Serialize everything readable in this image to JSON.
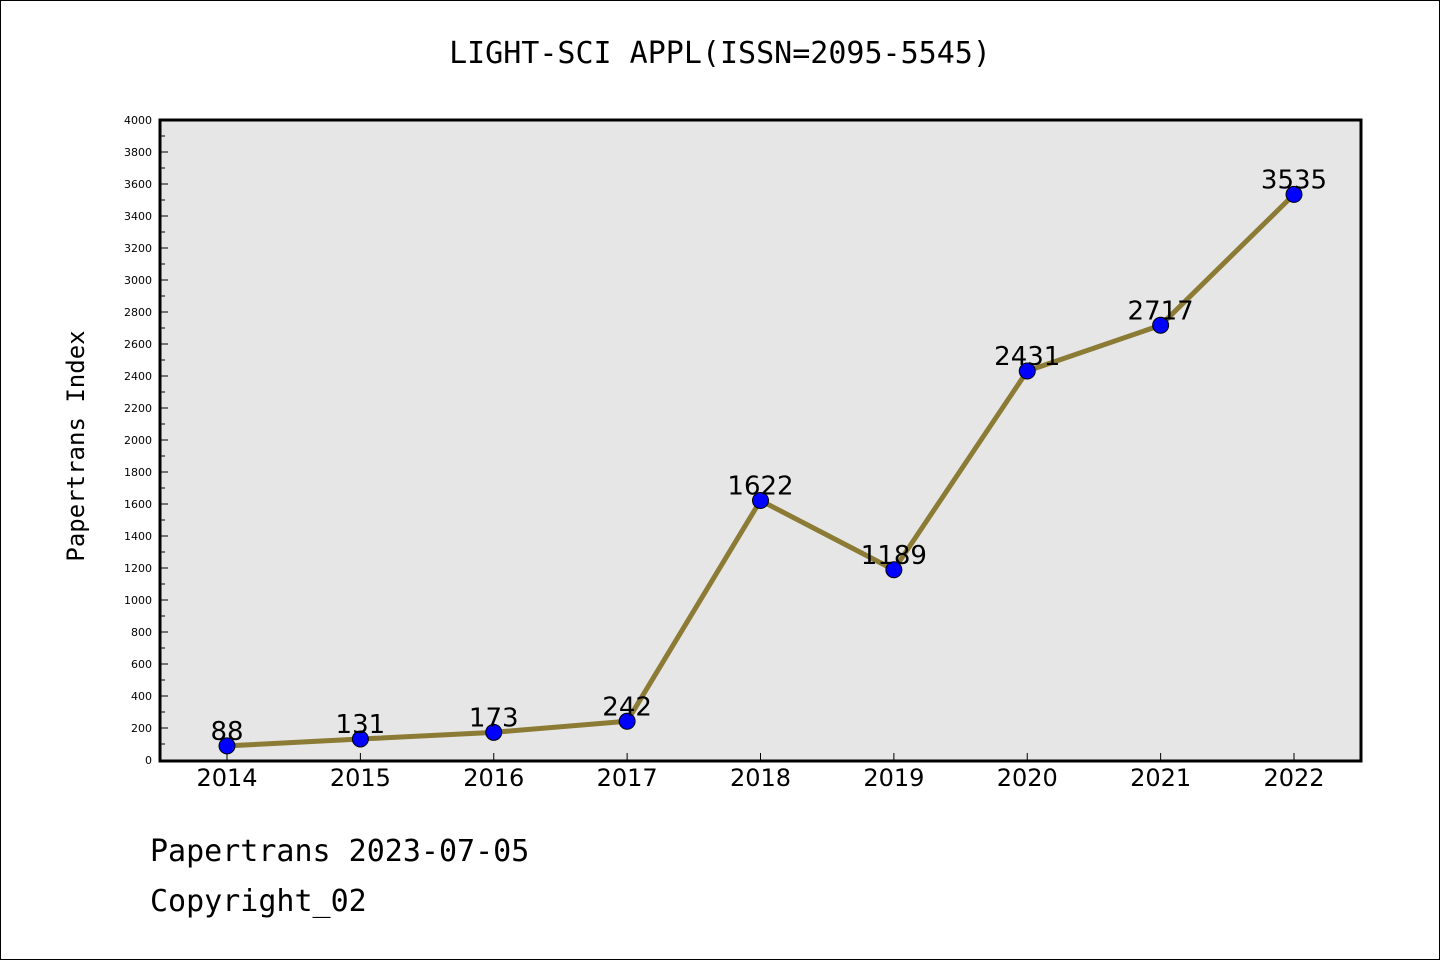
{
  "title": "LIGHT-SCI APPL(ISSN=2095-5545)",
  "footer": {
    "line1": "Papertrans 2023-07-05",
    "line2": "Copyright_02"
  },
  "colors": {
    "plot_background": "#e6e6e6",
    "line": "#8b7b35",
    "marker": "#0000ff"
  },
  "chart_data": {
    "type": "line",
    "title": "LIGHT-SCI APPL(ISSN=2095-5545)",
    "xlabel": "",
    "ylabel": "Papertrans Index",
    "categories": [
      "2014",
      "2015",
      "2016",
      "2017",
      "2018",
      "2019",
      "2020",
      "2021",
      "2022"
    ],
    "values": [
      88,
      131,
      173,
      242,
      1622,
      1189,
      2431,
      2717,
      3535
    ],
    "data_labels": [
      "88",
      "131",
      "173",
      "242",
      "1622",
      "1189",
      "2431",
      "2717",
      "3535"
    ],
    "ylim": [
      0,
      4000
    ],
    "y_ticks": [
      0,
      200,
      400,
      600,
      800,
      1000,
      1200,
      1400,
      1600,
      1800,
      2000,
      2200,
      2400,
      2600,
      2800,
      3000,
      3200,
      3400,
      3600,
      3800,
      4000
    ],
    "grid": false,
    "legend": "none"
  }
}
